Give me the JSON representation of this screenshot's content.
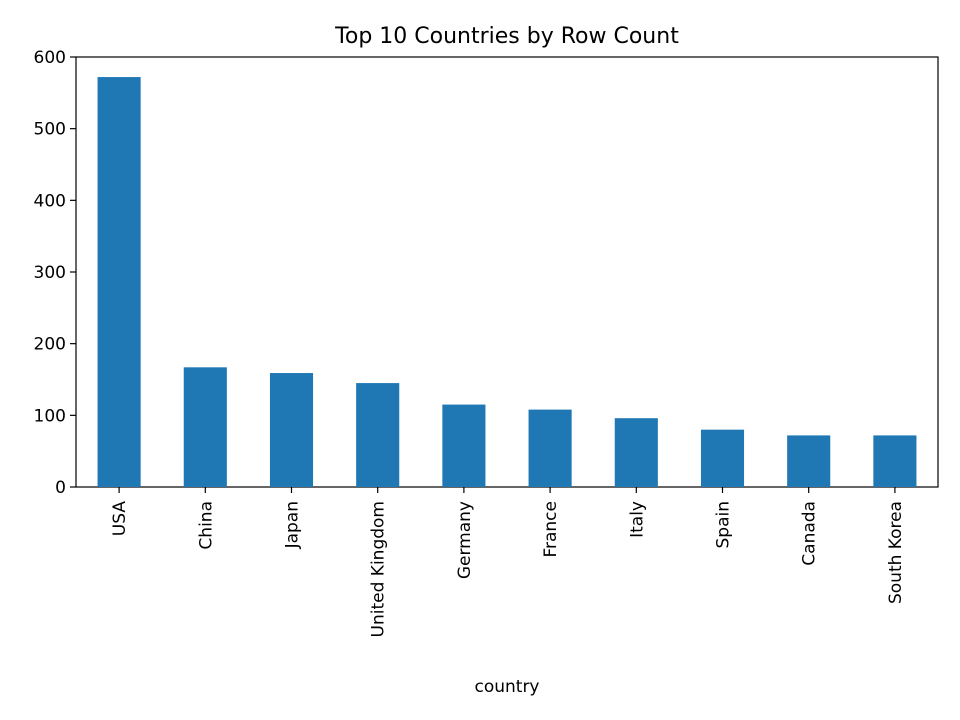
{
  "chart_data": {
    "type": "bar",
    "title": "Top 10 Countries by Row Count",
    "xlabel": "country",
    "ylabel": "",
    "categories": [
      "USA",
      "China",
      "Japan",
      "United Kingdom",
      "Germany",
      "France",
      "Italy",
      "Spain",
      "Canada",
      "South Korea"
    ],
    "values": [
      572,
      167,
      159,
      145,
      115,
      108,
      96,
      80,
      72,
      72
    ],
    "ylim": [
      0,
      600
    ],
    "yticks": [
      0,
      100,
      200,
      300,
      400,
      500,
      600
    ],
    "grid": false,
    "legend": "none",
    "bar_color": "#1f77b4"
  }
}
